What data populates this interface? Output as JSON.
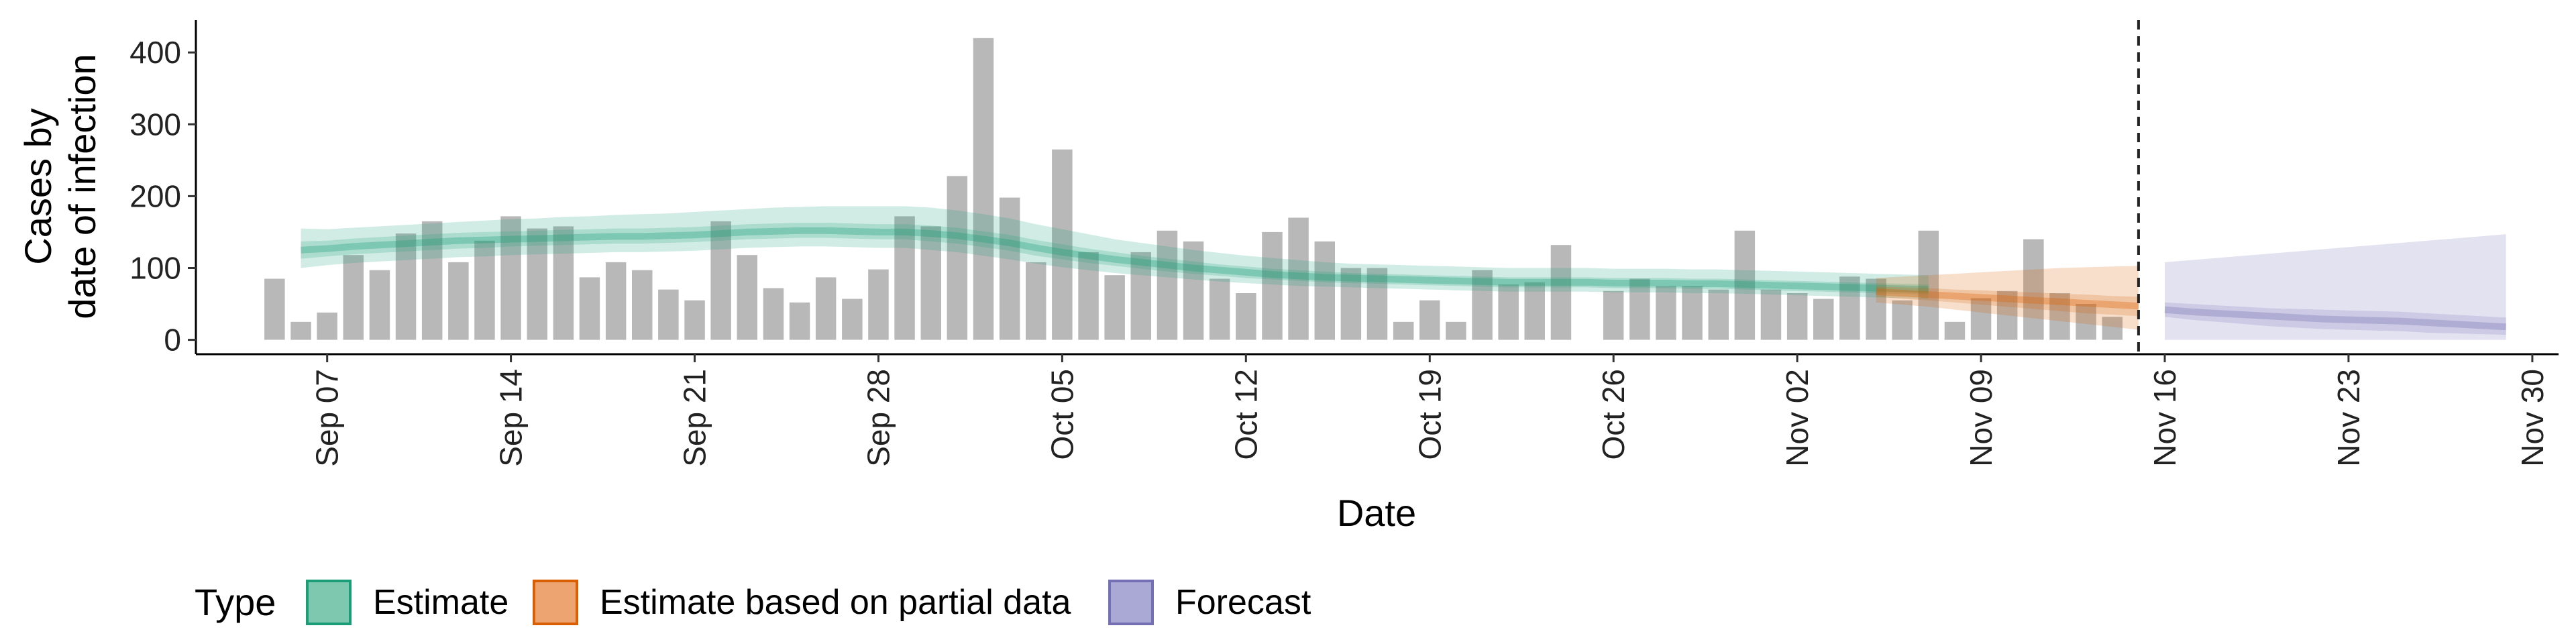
{
  "chart_data": {
    "type": "bar",
    "title": "",
    "xlabel": "Date",
    "ylabel_lines": [
      "Cases by",
      "date of infection"
    ],
    "ylim": [
      -20,
      445
    ],
    "yticks": [
      0,
      100,
      200,
      300,
      400
    ],
    "x_range": [
      "2020-09-02",
      "2020-12-01"
    ],
    "xticks": [
      {
        "date": "2020-09-07",
        "label": "Sep 07"
      },
      {
        "date": "2020-09-14",
        "label": "Sep 14"
      },
      {
        "date": "2020-09-21",
        "label": "Sep 21"
      },
      {
        "date": "2020-09-28",
        "label": "Sep 28"
      },
      {
        "date": "2020-10-05",
        "label": "Oct 05"
      },
      {
        "date": "2020-10-12",
        "label": "Oct 12"
      },
      {
        "date": "2020-10-19",
        "label": "Oct 19"
      },
      {
        "date": "2020-10-26",
        "label": "Oct 26"
      },
      {
        "date": "2020-11-02",
        "label": "Nov 02"
      },
      {
        "date": "2020-11-09",
        "label": "Nov 09"
      },
      {
        "date": "2020-11-16",
        "label": "Nov 16"
      },
      {
        "date": "2020-11-23",
        "label": "Nov 23"
      },
      {
        "date": "2020-11-30",
        "label": "Nov 30"
      }
    ],
    "grid": false,
    "legend": {
      "title": "Type",
      "placement": "bottom",
      "entries": [
        {
          "label": "Estimate",
          "fill": "#7ec8b0",
          "border": "#1b9e77"
        },
        {
          "label": "Estimate based on partial data",
          "fill": "#eea470",
          "border": "#d95f02"
        },
        {
          "label": "Forecast",
          "fill": "#aaa8d4",
          "border": "#7570b3"
        }
      ]
    },
    "reference_line": {
      "date": "2020-11-15",
      "style": "dashed"
    },
    "bars": {
      "color": "#b8b8b8",
      "start_date": "2020-09-05",
      "values": [
        85,
        25,
        38,
        118,
        97,
        148,
        165,
        108,
        138,
        172,
        155,
        158,
        87,
        108,
        97,
        70,
        55,
        165,
        118,
        72,
        52,
        87,
        57,
        98,
        172,
        158,
        228,
        420,
        198,
        108,
        265,
        122,
        90,
        122,
        152,
        137,
        85,
        65,
        150,
        170,
        137,
        100,
        100,
        25,
        55,
        25,
        97,
        77,
        80,
        132,
        0,
        68,
        85,
        75,
        75,
        70,
        152,
        70,
        65,
        57,
        88,
        85,
        55,
        152,
        25,
        58,
        68,
        140,
        65,
        50,
        32
      ]
    },
    "series": [
      {
        "name": "Estimate",
        "color": "#1b9e77",
        "start_date": "2020-09-06",
        "median": [
          125,
          127,
          130,
          132,
          134,
          136,
          138,
          139,
          140,
          141,
          142,
          143,
          144,
          144,
          145,
          146,
          148,
          150,
          151,
          152,
          152,
          151,
          150,
          150,
          148,
          145,
          140,
          135,
          128,
          122,
          117,
          112,
          108,
          104,
          100,
          97,
          94,
          91,
          89,
          87,
          86,
          85,
          84,
          83,
          82,
          81,
          80,
          80,
          80,
          80,
          79,
          79,
          79,
          78,
          78,
          77,
          76,
          75,
          74,
          73,
          72,
          71,
          70
        ],
        "bands": [
          {
            "lower": [
              113,
              116,
              119,
              121,
              123,
              125,
              127,
              128,
              130,
              131,
              132,
              133,
              134,
              134,
              135,
              136,
              138,
              140,
              141,
              142,
              142,
              141,
              140,
              140,
              137,
              134,
              129,
              124,
              117,
              112,
              107,
              103,
              99,
              95,
              92,
              89,
              86,
              84,
              82,
              80,
              79,
              78,
              77,
              76,
              75,
              74,
              73,
              73,
              73,
              73,
              72,
              72,
              72,
              71,
              71,
              70,
              69,
              68,
              67,
              66,
              65,
              64,
              63
            ],
            "upper": [
              137,
              138,
              141,
              143,
              145,
              147,
              149,
              150,
              151,
              152,
              153,
              154,
              155,
              155,
              156,
              157,
              159,
              161,
              162,
              163,
              163,
              162,
              161,
              161,
              159,
              156,
              151,
              146,
              139,
              133,
              127,
              122,
              117,
              113,
              109,
              105,
              102,
              99,
              97,
              95,
              93,
              92,
              91,
              90,
              89,
              88,
              87,
              87,
              87,
              87,
              86,
              86,
              86,
              85,
              85,
              84,
              83,
              82,
              81,
              80,
              79,
              78,
              77
            ]
          },
          {
            "lower": [
              100,
              104,
              107,
              109,
              111,
              113,
              115,
              116,
              118,
              119,
              120,
              121,
              122,
              122,
              123,
              124,
              126,
              128,
              129,
              130,
              130,
              129,
              128,
              128,
              125,
              122,
              117,
              112,
              106,
              101,
              97,
              93,
              90,
              87,
              84,
              81,
              79,
              77,
              75,
              74,
              73,
              72,
              71,
              70,
              69,
              68,
              67,
              67,
              67,
              67,
              66,
              66,
              66,
              65,
              65,
              64,
              63,
              62,
              61,
              60,
              59,
              58,
              57
            ],
            "upper": [
              155,
              154,
              156,
              158,
              160,
              162,
              164,
              166,
              168,
              169,
              171,
              172,
              174,
              175,
              176,
              178,
              180,
              182,
              184,
              185,
              186,
              186,
              186,
              186,
              184,
              180,
              175,
              169,
              161,
              154,
              147,
              140,
              135,
              130,
              125,
              121,
              117,
              114,
              111,
              108,
              106,
              105,
              104,
              103,
              102,
              101,
              100,
              100,
              100,
              100,
              99,
              99,
              99,
              98,
              98,
              97,
              96,
              95,
              94,
              93,
              92,
              91,
              90
            ]
          }
        ]
      },
      {
        "name": "Estimate based on partial data",
        "color": "#d95f02",
        "start_date": "2020-11-05",
        "median": [
          67,
          65,
          63,
          61,
          59,
          57,
          55,
          53,
          51,
          49,
          47
        ],
        "bands": [
          {
            "lower": [
              60,
              57,
              55,
              52,
              49,
              46,
              43,
              40,
              37,
              35,
              33
            ],
            "upper": [
              74,
              73,
              72,
              70,
              69,
              67,
              66,
              64,
              63,
              61,
              60
            ]
          },
          {
            "lower": [
              52,
              49,
              46,
              42,
              38,
              34,
              30,
              26,
              22,
              18,
              14
            ],
            "upper": [
              86,
              88,
              90,
              92,
              94,
              96,
              98,
              100,
              101,
              102,
              103
            ]
          }
        ]
      },
      {
        "name": "Forecast",
        "color": "#7570b3",
        "start_date": "2020-11-16",
        "median": [
          42,
          39,
          37,
          35,
          33,
          31,
          29,
          28,
          27,
          26,
          24,
          22,
          20,
          18
        ],
        "bands": [
          {
            "lower": [
              32,
              28,
              25,
              22,
              19,
              17,
              15,
              14,
              13,
              12,
              10,
              9,
              8,
              7
            ],
            "upper": [
              52,
              50,
              48,
              46,
              44,
              43,
              42,
              41,
              40,
              39,
              37,
              35,
              33,
              31
            ]
          },
          {
            "lower": [
              0,
              0,
              0,
              0,
              0,
              0,
              0,
              0,
              0,
              0,
              0,
              0,
              0,
              0
            ],
            "upper": [
              108,
              111,
              114,
              117,
              120,
              123,
              126,
              129,
              132,
              135,
              138,
              141,
              144,
              147
            ]
          }
        ]
      }
    ]
  }
}
